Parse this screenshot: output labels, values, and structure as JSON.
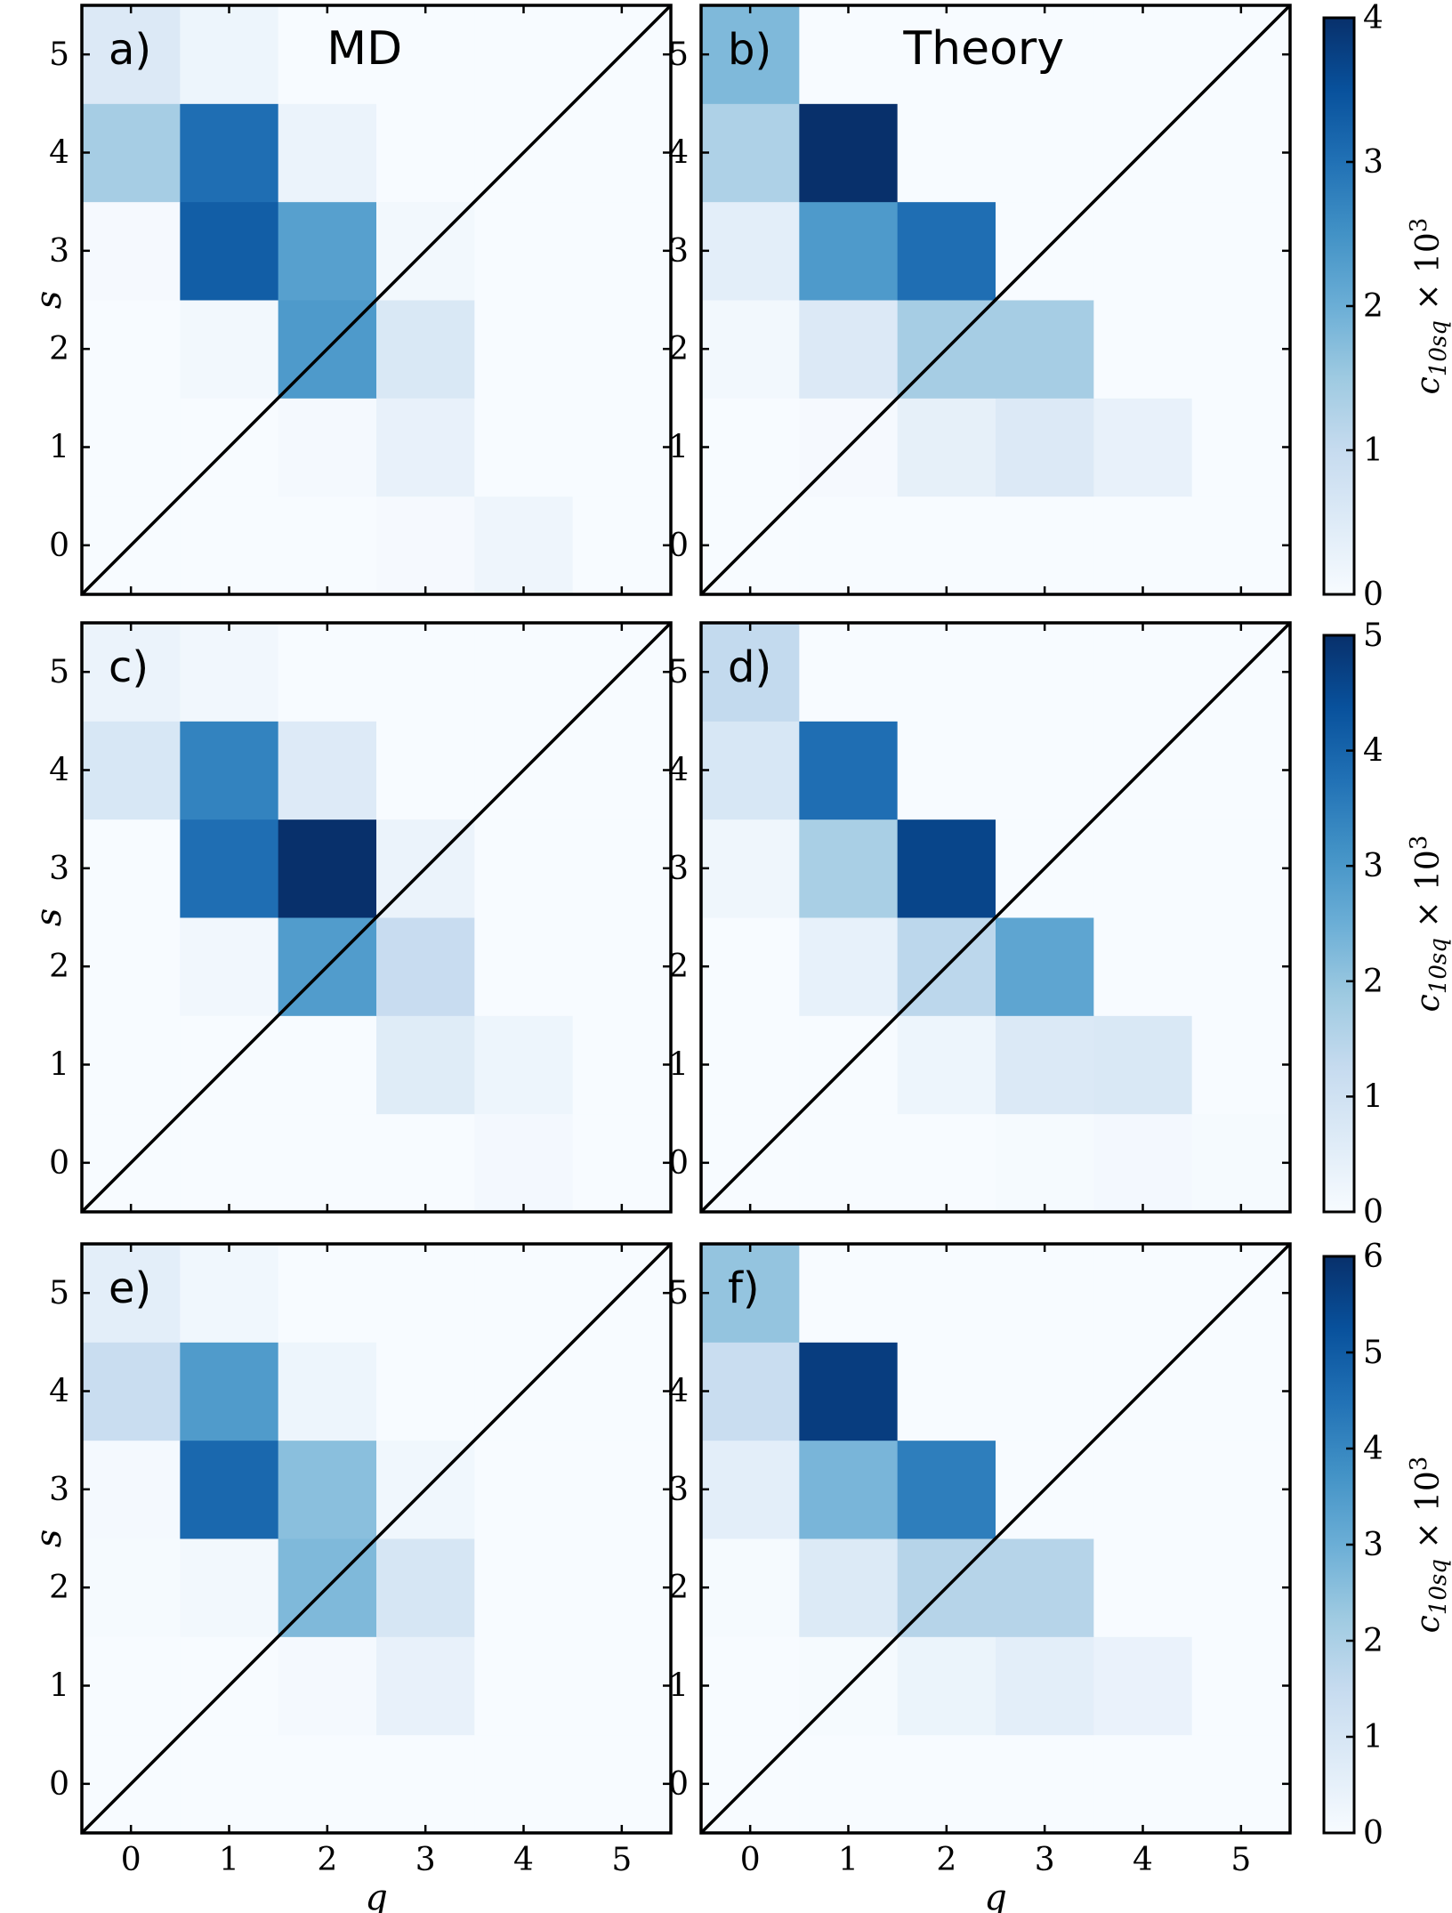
{
  "chart_data": [
    {
      "id": "a",
      "type": "heatmap",
      "label": "a)",
      "title": "MD",
      "xlabel": "",
      "ylabel": "s",
      "xticks": [
        0,
        1,
        2,
        3,
        4,
        5
      ],
      "yticks": [
        0,
        1,
        2,
        3,
        4,
        5
      ],
      "x_tick_labels_shown": false,
      "colorbar_group": 0,
      "values": [
        [
          0.0,
          0.0,
          0.0,
          0.05,
          0.18,
          0.0
        ],
        [
          0.0,
          0.0,
          0.06,
          0.3,
          0.0,
          0.0
        ],
        [
          0.0,
          0.1,
          2.35,
          0.6,
          0.0,
          0.0
        ],
        [
          0.05,
          3.3,
          2.25,
          0.1,
          0.0,
          0.0
        ],
        [
          1.4,
          3.05,
          0.25,
          0.0,
          0.0,
          0.0
        ],
        [
          0.55,
          0.2,
          0.0,
          0.0,
          0.0,
          0.0
        ]
      ]
    },
    {
      "id": "b",
      "type": "heatmap",
      "label": "b)",
      "title": "Theory",
      "xlabel": "",
      "ylabel": "",
      "xticks": [
        0,
        1,
        2,
        3,
        4,
        5
      ],
      "yticks": [
        0,
        1,
        2,
        3,
        4,
        5
      ],
      "x_tick_labels_shown": false,
      "colorbar_group": 0,
      "values": [
        [
          0.0,
          0.0,
          0.0,
          0.0,
          0.0,
          0.0
        ],
        [
          0.0,
          0.05,
          0.35,
          0.55,
          0.3,
          0.0
        ],
        [
          0.1,
          0.55,
          1.4,
          1.4,
          0.0,
          0.0
        ],
        [
          0.4,
          2.35,
          3.05,
          0.0,
          0.0,
          0.0
        ],
        [
          1.3,
          4.05,
          0.0,
          0.0,
          0.0,
          0.0
        ],
        [
          1.8,
          0.0,
          0.0,
          0.0,
          0.0,
          0.0
        ]
      ]
    },
    {
      "id": "c",
      "type": "heatmap",
      "label": "c)",
      "title": "",
      "xlabel": "",
      "ylabel": "s",
      "xticks": [
        0,
        1,
        2,
        3,
        4,
        5
      ],
      "yticks": [
        0,
        1,
        2,
        3,
        4,
        5
      ],
      "x_tick_labels_shown": false,
      "colorbar_group": 1,
      "values": [
        [
          0.0,
          0.0,
          0.0,
          0.0,
          0.1,
          0.0
        ],
        [
          0.0,
          0.0,
          0.0,
          0.6,
          0.25,
          0.0
        ],
        [
          0.0,
          0.15,
          2.9,
          1.2,
          0.0,
          0.0
        ],
        [
          0.0,
          3.8,
          5.0,
          0.3,
          0.0,
          0.0
        ],
        [
          0.8,
          3.4,
          0.65,
          0.0,
          0.0,
          0.0
        ],
        [
          0.3,
          0.15,
          0.0,
          0.0,
          0.0,
          0.0
        ]
      ]
    },
    {
      "id": "d",
      "type": "heatmap",
      "label": "d)",
      "title": "",
      "xlabel": "",
      "ylabel": "",
      "xticks": [
        0,
        1,
        2,
        3,
        4,
        5
      ],
      "yticks": [
        0,
        1,
        2,
        3,
        4,
        5
      ],
      "x_tick_labels_shown": false,
      "colorbar_group": 1,
      "values": [
        [
          0.0,
          0.0,
          0.0,
          0.05,
          0.1,
          0.05
        ],
        [
          0.0,
          0.0,
          0.25,
          0.7,
          0.75,
          0.0
        ],
        [
          0.0,
          0.4,
          1.4,
          2.7,
          0.0,
          0.0
        ],
        [
          0.2,
          1.7,
          4.6,
          0.0,
          0.0,
          0.0
        ],
        [
          0.8,
          3.8,
          0.0,
          0.0,
          0.0,
          0.0
        ],
        [
          1.3,
          0.0,
          0.0,
          0.0,
          0.0,
          0.0
        ]
      ]
    },
    {
      "id": "e",
      "type": "heatmap",
      "label": "e)",
      "title": "",
      "xlabel": "q",
      "ylabel": "s",
      "xticks": [
        0,
        1,
        2,
        3,
        4,
        5
      ],
      "yticks": [
        0,
        1,
        2,
        3,
        4,
        5
      ],
      "x_tick_labels_shown": true,
      "colorbar_group": 2,
      "values": [
        [
          0.0,
          0.0,
          0.0,
          0.0,
          0.0,
          0.0
        ],
        [
          0.0,
          0.0,
          0.1,
          0.45,
          0.0,
          0.0
        ],
        [
          0.05,
          0.15,
          2.7,
          1.0,
          0.0,
          0.0
        ],
        [
          0.1,
          4.7,
          2.55,
          0.2,
          0.0,
          0.0
        ],
        [
          1.4,
          3.5,
          0.3,
          0.0,
          0.0,
          0.0
        ],
        [
          0.6,
          0.2,
          0.0,
          0.0,
          0.0,
          0.0
        ]
      ]
    },
    {
      "id": "f",
      "type": "heatmap",
      "label": "f)",
      "title": "",
      "xlabel": "q",
      "ylabel": "",
      "xticks": [
        0,
        1,
        2,
        3,
        4,
        5
      ],
      "yticks": [
        0,
        1,
        2,
        3,
        4,
        5
      ],
      "x_tick_labels_shown": true,
      "colorbar_group": 2,
      "values": [
        [
          0.0,
          0.0,
          0.0,
          0.0,
          0.0,
          0.0
        ],
        [
          0.0,
          0.05,
          0.35,
          0.6,
          0.4,
          0.0
        ],
        [
          0.05,
          0.8,
          1.8,
          1.8,
          0.0,
          0.0
        ],
        [
          0.6,
          2.8,
          4.2,
          0.0,
          0.0,
          0.0
        ],
        [
          1.4,
          5.7,
          0.0,
          0.0,
          0.0,
          0.0
        ],
        [
          2.4,
          0.0,
          0.0,
          0.0,
          0.0,
          0.0
        ]
      ]
    }
  ],
  "colorbars": [
    {
      "min": 0,
      "max": 4,
      "ticks": [
        0,
        1,
        2,
        3,
        4
      ],
      "label": "c10sq × 10^3"
    },
    {
      "min": 0,
      "max": 5,
      "ticks": [
        0,
        1,
        2,
        3,
        4,
        5
      ],
      "label": "c10sq × 10^3"
    },
    {
      "min": 0,
      "max": 6,
      "ticks": [
        0,
        1,
        2,
        3,
        4,
        5,
        6
      ],
      "label": "c10sq × 10^3"
    }
  ],
  "colormap": "Blues",
  "colormap_stops": [
    "#f7fbff",
    "#deebf7",
    "#c6dbef",
    "#9ecae1",
    "#6baed6",
    "#4292c6",
    "#2171b5",
    "#08519c",
    "#08306b"
  ],
  "diagonal_line": true
}
